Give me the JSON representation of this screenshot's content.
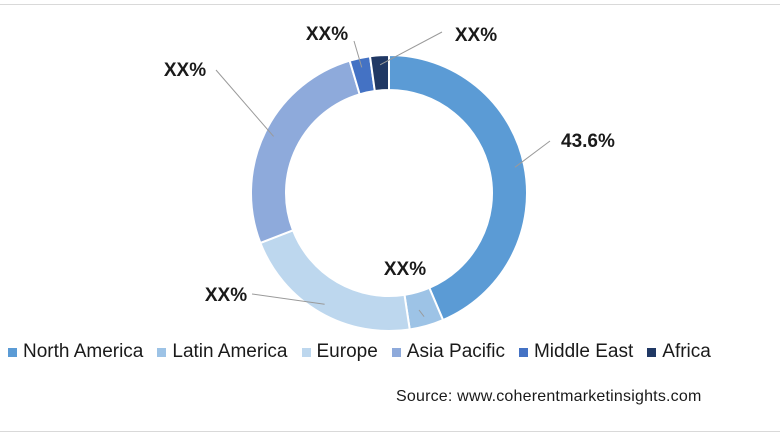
{
  "chart_data": {
    "type": "pie",
    "subtype": "donut",
    "categories": [
      "North America",
      "Latin America",
      "Europe",
      "Asia Pacific",
      "Middle East",
      "Africa"
    ],
    "values": [
      43.6,
      4.0,
      21.5,
      26.3,
      2.4,
      2.2
    ],
    "data_labels": [
      "43.6%",
      "XX%",
      "XX%",
      "XX%",
      "XX%",
      "XX%"
    ],
    "colors": [
      "#5b9bd5",
      "#9dc3e6",
      "#bdd7ee",
      "#8eaadb",
      "#4472c4",
      "#203864"
    ],
    "legend_position": "bottom"
  },
  "source": "Source: www.coherentmarketinsights.com"
}
